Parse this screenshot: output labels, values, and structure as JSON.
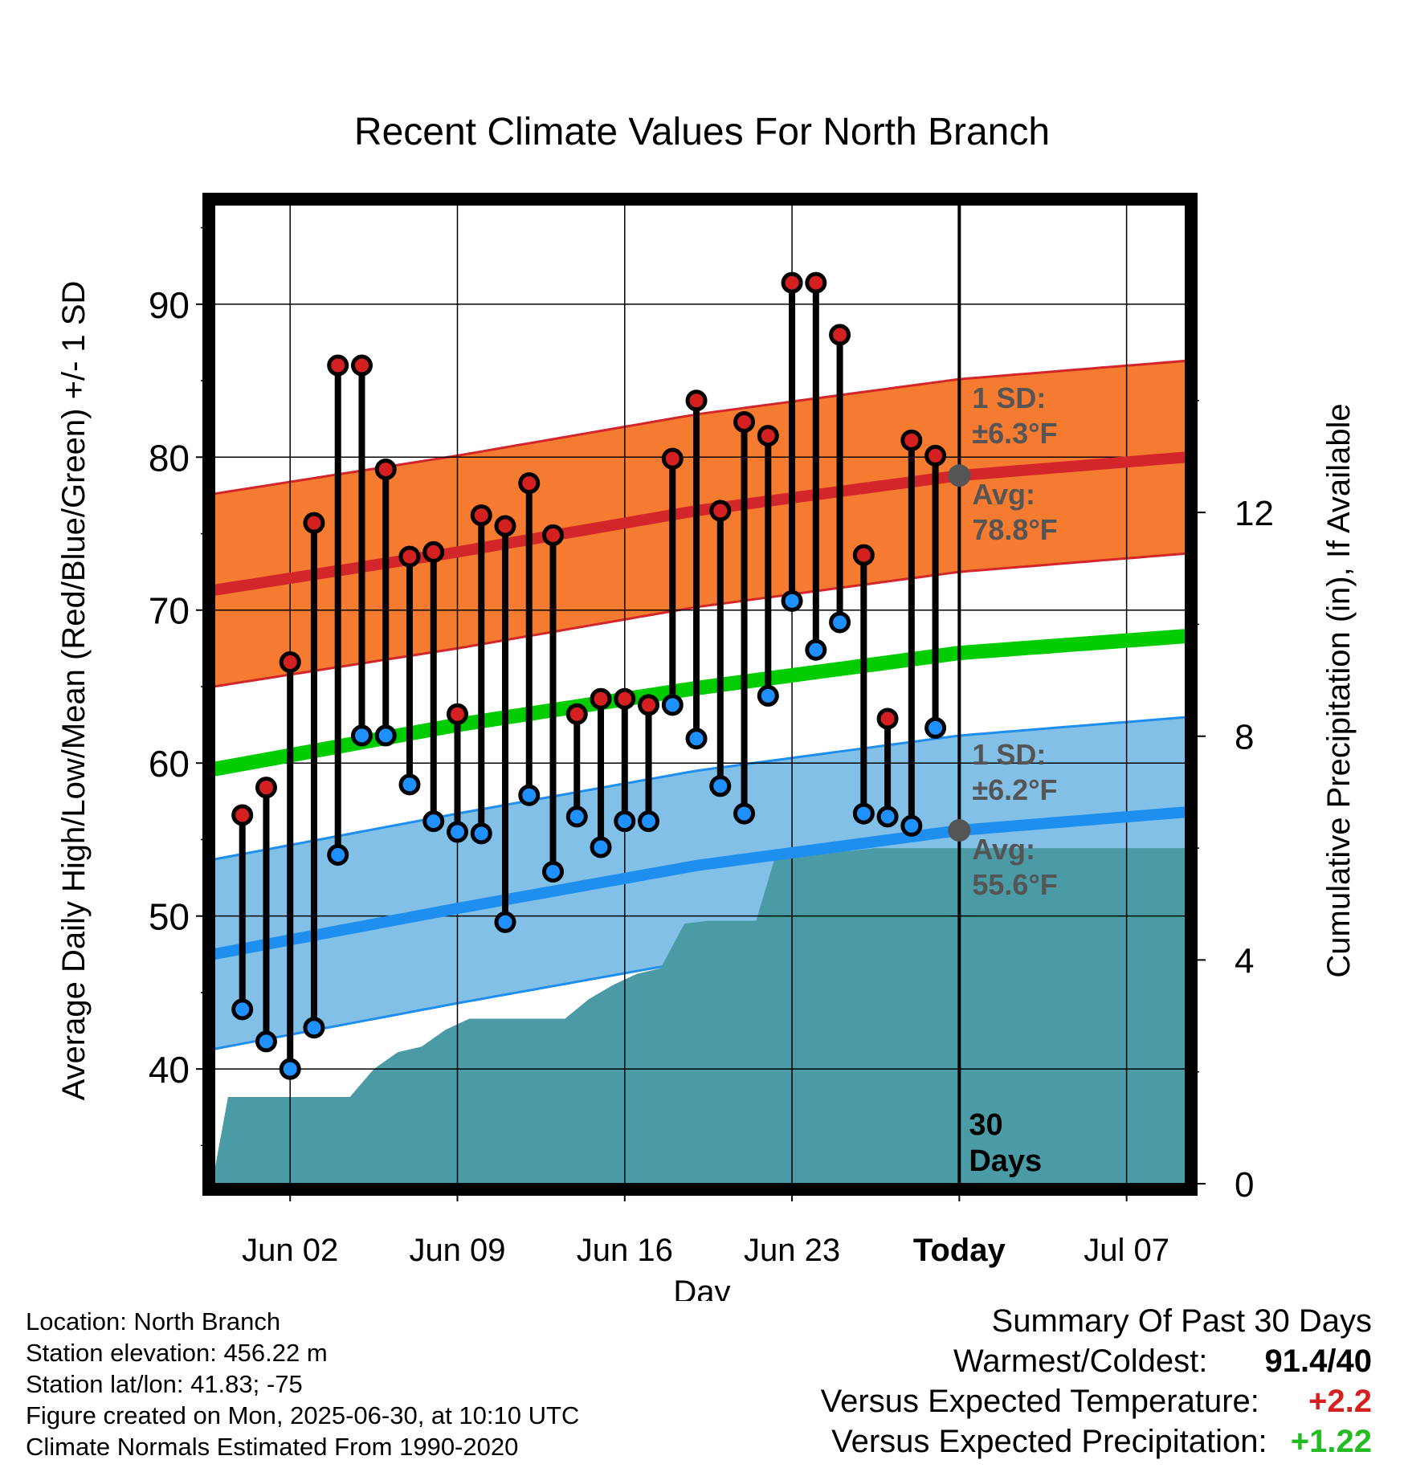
{
  "chart_data": {
    "type": "line",
    "title": "Recent Climate Values For North Branch",
    "xlabel": "Day",
    "ylabel": "Average Daily High/Low/Mean (Red/Blue/Green) +/- 1 SD",
    "y2label": "Cumulative Precipitation (in), If Available",
    "x_start": "Jun 30 - 31 days",
    "x_ticks": [
      {
        "day": 2,
        "label": "Jun 02"
      },
      {
        "day": 9,
        "label": "Jun 09"
      },
      {
        "day": 16,
        "label": "Jun 16"
      },
      {
        "day": 23,
        "label": "Jun 23"
      },
      {
        "day": 30,
        "label": "Today"
      },
      {
        "day": 37,
        "label": "Jul 07"
      }
    ],
    "xlim": [
      -1.2,
      39.5
    ],
    "ylim": [
      32.5,
      96.5
    ],
    "y_ticks": [
      40,
      50,
      60,
      70,
      80,
      90
    ],
    "y2lim": [
      0,
      17.5
    ],
    "y2_ticks": [
      0,
      4,
      8,
      12
    ],
    "grid": true,
    "highs": [
      56.6,
      58.4,
      66.6,
      75.7,
      86,
      86,
      79.2,
      73.5,
      73.8,
      63.2,
      76.2,
      75.5,
      78.3,
      74.9,
      63.2,
      64.2,
      64.2,
      63.8,
      79.9,
      83.7,
      76.5,
      82.3,
      81.4,
      91.4,
      91.4,
      88,
      73.6,
      62.9,
      81.1,
      80.1
    ],
    "lows": [
      43.9,
      41.8,
      40,
      42.7,
      54,
      61.8,
      61.8,
      58.6,
      56.2,
      55.5,
      55.4,
      49.6,
      57.9,
      52.9,
      56.5,
      54.5,
      56.2,
      56.2,
      63.8,
      61.6,
      58.5,
      56.7,
      64.4,
      70.6,
      67.4,
      69.2,
      56.7,
      56.5,
      55.9,
      62.3
    ],
    "days": [
      0,
      1,
      2,
      3,
      4,
      5,
      6,
      7,
      8,
      9,
      10,
      11,
      12,
      13,
      14,
      15,
      16,
      17,
      18,
      19,
      20,
      21,
      22,
      23,
      24,
      25,
      26,
      27,
      28,
      29
    ],
    "normal_high": {
      "x": [
        -1.2,
        9,
        19,
        30,
        39.5
      ],
      "y": [
        71.3,
        73.8,
        76.5,
        78.8,
        80
      ]
    },
    "normal_high_sd": 6.3,
    "normal_low": {
      "x": [
        -1.2,
        9,
        19,
        30,
        39.5
      ],
      "y": [
        47.5,
        50.5,
        53.3,
        55.6,
        56.8
      ]
    },
    "normal_low_sd": 6.2,
    "normal_mean": {
      "x": [
        -1.2,
        9,
        19,
        30,
        39.5
      ],
      "y": [
        59.6,
        62.5,
        64.9,
        67.2,
        68.3
      ]
    },
    "precip": {
      "x": [
        -1.2,
        -0.6,
        0.1,
        4.5,
        5.5,
        6.5,
        7.5,
        8.5,
        9.5,
        10.5,
        13.5,
        14.5,
        15.5,
        16.5,
        17.5,
        18.5,
        19.5,
        20.5,
        21.5,
        22.3,
        22.5,
        23.5,
        25.5,
        26.5,
        30,
        39.5
      ],
      "y": [
        0.15,
        1.55,
        1.55,
        1.55,
        2.05,
        2.35,
        2.45,
        2.75,
        2.95,
        2.95,
        2.95,
        3.3,
        3.55,
        3.75,
        3.85,
        4.65,
        4.7,
        4.7,
        4.7,
        5.85,
        5.95,
        5.95,
        5.95,
        6.0,
        6.0,
        6.0
      ]
    },
    "today_label": "30 Days",
    "annotations": {
      "high_sd_title": "1 SD:",
      "high_sd_value": "±6.3°F",
      "high_avg_title": "Avg:",
      "high_avg_value": "78.8°F",
      "low_sd_title": "1 SD:",
      "low_sd_value": "±6.2°F",
      "low_avg_title": "Avg:",
      "low_avg_value": "55.6°F"
    },
    "colors": {
      "high_band": "#f47b30",
      "high_line": "#d3262a",
      "low_band": "#82c0e8",
      "low_line": "#1e8fef",
      "mean_line": "#00cc00",
      "precip": "#4a9ba5",
      "high_marker": "#d42020",
      "low_marker": "#1e90ff",
      "annotation": "#555555"
    }
  },
  "footer": {
    "location": "Location: North Branch",
    "elevation": "Station elevation: 456.22 m",
    "latlon": "Station lat/lon: 41.83; -75",
    "created": "Figure created on Mon, 2025-06-30, at 10:10 UTC",
    "normals": "Climate Normals Estimated From 1990-2020"
  },
  "summary": {
    "title": "Summary Of Past 30 Days",
    "warm_cold_label": "Warmest/Coldest:",
    "warm_cold_value": "91.4/40",
    "temp_label": "Versus Expected Temperature:",
    "temp_value": "+2.2",
    "temp_color": "#d42020",
    "precip_label": "Versus Expected Precipitation:",
    "precip_value": "+1.22",
    "precip_color": "#22bb22"
  }
}
